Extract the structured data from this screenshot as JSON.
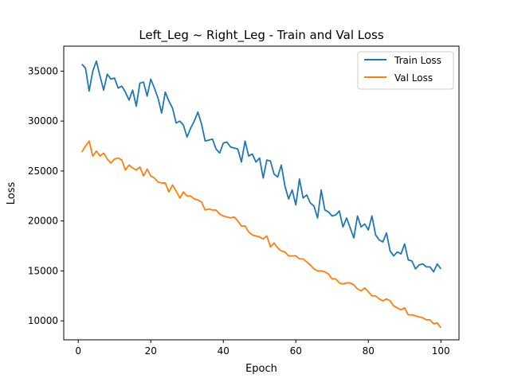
{
  "chart_data": {
    "type": "line",
    "title": "Left_Leg ~ Right_Leg - Train and Val Loss",
    "xlabel": "Epoch",
    "ylabel": "Loss",
    "xlim": [
      -4,
      105
    ],
    "ylim": [
      8100,
      37500
    ],
    "xticks": [
      0,
      20,
      40,
      60,
      80,
      100
    ],
    "yticks": [
      10000,
      15000,
      20000,
      25000,
      30000,
      35000
    ],
    "grid": false,
    "legend_position": "top-right",
    "x": [
      1,
      2,
      3,
      4,
      5,
      6,
      7,
      8,
      9,
      10,
      11,
      12,
      13,
      14,
      15,
      16,
      17,
      18,
      19,
      20,
      21,
      22,
      23,
      24,
      25,
      26,
      27,
      28,
      29,
      30,
      31,
      32,
      33,
      34,
      35,
      36,
      37,
      38,
      39,
      40,
      41,
      42,
      43,
      44,
      45,
      46,
      47,
      48,
      49,
      50,
      51,
      52,
      53,
      54,
      55,
      56,
      57,
      58,
      59,
      60,
      61,
      62,
      63,
      64,
      65,
      66,
      67,
      68,
      69,
      70,
      71,
      72,
      73,
      74,
      75,
      76,
      77,
      78,
      79,
      80,
      81,
      82,
      83,
      84,
      85,
      86,
      87,
      88,
      89,
      90,
      91,
      92,
      93,
      94,
      95,
      96,
      97,
      98,
      99,
      100
    ],
    "series": [
      {
        "name": "Train Loss",
        "color": "#1f77b4",
        "values": [
          35700,
          35300,
          33000,
          35000,
          36000,
          34500,
          33100,
          34700,
          34200,
          34300,
          33300,
          33500,
          32900,
          32100,
          33100,
          31500,
          33800,
          33900,
          32500,
          34200,
          33300,
          32300,
          30800,
          32900,
          32000,
          31300,
          29800,
          30000,
          29600,
          28400,
          29300,
          30000,
          30900,
          29700,
          28000,
          28100,
          28200,
          27200,
          26800,
          27800,
          27900,
          27400,
          27300,
          27200,
          25900,
          28000,
          26500,
          26700,
          25900,
          26300,
          24300,
          26100,
          26000,
          24700,
          24400,
          25600,
          23500,
          22200,
          23100,
          21600,
          24200,
          22300,
          22600,
          21800,
          21500,
          20300,
          23100,
          21100,
          20900,
          20500,
          20600,
          21000,
          19400,
          20300,
          19300,
          18300,
          20500,
          19400,
          19700,
          19100,
          20500,
          18600,
          18100,
          17900,
          18800,
          17000,
          16500,
          16900,
          16700,
          17700,
          16100,
          16000,
          15200,
          15600,
          15700,
          15400,
          15400,
          14900,
          15700,
          15200
        ]
      },
      {
        "name": "Val Loss",
        "color": "#ff7f0e",
        "values": [
          26900,
          27500,
          28000,
          26500,
          27000,
          26500,
          26800,
          26200,
          25800,
          26200,
          26300,
          26100,
          25100,
          25600,
          25300,
          25100,
          25400,
          24500,
          25200,
          24500,
          24300,
          23900,
          23800,
          23800,
          22900,
          23600,
          23000,
          22300,
          22900,
          22500,
          22500,
          22200,
          22100,
          21900,
          21100,
          21200,
          21100,
          21100,
          20700,
          20500,
          20400,
          20300,
          20400,
          20000,
          19500,
          19500,
          18900,
          18600,
          18500,
          18400,
          18200,
          18500,
          17400,
          17800,
          17300,
          17000,
          16900,
          16500,
          16500,
          16500,
          16200,
          16200,
          15900,
          15600,
          15200,
          15000,
          15000,
          14900,
          14700,
          14200,
          14200,
          13800,
          13700,
          13800,
          13800,
          13600,
          13200,
          13000,
          13300,
          12900,
          12500,
          12500,
          12200,
          12000,
          12200,
          12000,
          11500,
          11300,
          11100,
          11300,
          10600,
          10600,
          10500,
          10400,
          10300,
          10100,
          10100,
          9700,
          9800,
          9300
        ]
      }
    ]
  }
}
